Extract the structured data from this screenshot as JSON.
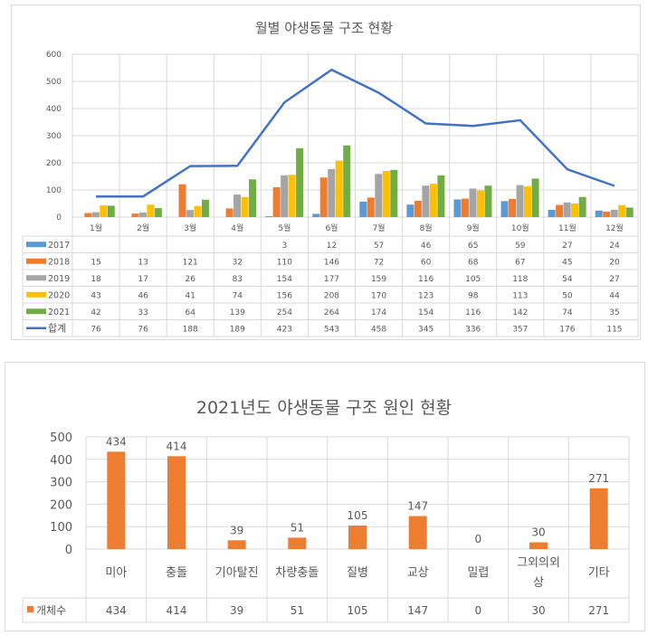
{
  "chart_data": [
    {
      "type": "bar+line",
      "title": "월별 야생동물 구조 현황",
      "categories": [
        "1월",
        "2월",
        "3월",
        "4월",
        "5월",
        "6월",
        "7월",
        "8월",
        "9월",
        "10월",
        "11월",
        "12월"
      ],
      "ylim": [
        0,
        600
      ],
      "yticks": [
        0,
        100,
        200,
        300,
        400,
        500,
        600
      ],
      "series": [
        {
          "name": "2017",
          "type": "bar",
          "color": "#5b9bd5",
          "values": [
            null,
            null,
            null,
            null,
            3,
            12,
            57,
            46,
            65,
            59,
            27,
            24
          ]
        },
        {
          "name": "2018",
          "type": "bar",
          "color": "#ed7d31",
          "values": [
            15,
            13,
            121,
            32,
            110,
            146,
            72,
            60,
            68,
            67,
            45,
            20
          ]
        },
        {
          "name": "2019",
          "type": "bar",
          "color": "#a5a5a5",
          "values": [
            18,
            17,
            26,
            83,
            154,
            177,
            159,
            116,
            105,
            118,
            54,
            27
          ]
        },
        {
          "name": "2020",
          "type": "bar",
          "color": "#ffc000",
          "values": [
            43,
            46,
            41,
            74,
            156,
            208,
            170,
            123,
            98,
            113,
            50,
            44
          ]
        },
        {
          "name": "2021",
          "type": "bar",
          "color": "#70ad47",
          "values": [
            42,
            33,
            64,
            139,
            254,
            264,
            174,
            154,
            116,
            142,
            74,
            35
          ]
        },
        {
          "name": "합계",
          "type": "line",
          "color": "#4472c4",
          "values": [
            76,
            76,
            188,
            189,
            423,
            543,
            458,
            345,
            336,
            357,
            176,
            115
          ]
        }
      ],
      "legend": "data-table"
    },
    {
      "type": "bar",
      "title": "2021년도 야생동물 구조 원인 현황",
      "categories": [
        "미아",
        "충돌",
        "기아탈진",
        "차량충돌",
        "질병",
        "교상",
        "밀렵",
        "그외의외상",
        "기타"
      ],
      "category_lines": [
        [
          "미아"
        ],
        [
          "충돌"
        ],
        [
          "기아탈진"
        ],
        [
          "차량충돌"
        ],
        [
          "질병"
        ],
        [
          "교상"
        ],
        [
          "밀렵"
        ],
        [
          "그외의외",
          "상"
        ],
        [
          "기타"
        ]
      ],
      "ylim": [
        0,
        500
      ],
      "yticks": [
        0,
        100,
        200,
        300,
        400,
        500
      ],
      "series": [
        {
          "name": "개체수",
          "color": "#ed7d31",
          "values": [
            434,
            414,
            39,
            51,
            105,
            147,
            0,
            30,
            271
          ]
        }
      ],
      "legend": "data-table"
    }
  ]
}
